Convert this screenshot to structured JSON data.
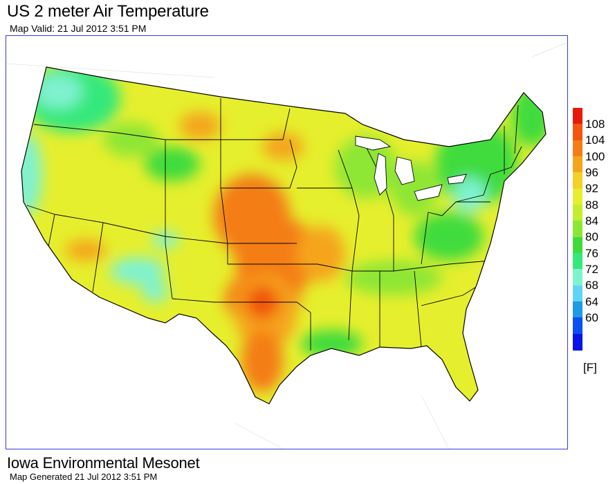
{
  "header": {
    "title": "US 2 meter Air Temperature",
    "subtitle": "Map Valid: 21 Jul 2012 3:51 PM"
  },
  "legend": {
    "unit": "[F]",
    "ticks": [
      "108",
      "104",
      "100",
      "96",
      "92",
      "88",
      "84",
      "80",
      "76",
      "72",
      "68",
      "64",
      "60"
    ],
    "colors": [
      "#e61a0a",
      "#f2550e",
      "#f47d15",
      "#f5a41d",
      "#f3d02a",
      "#e6ef2d",
      "#c3ee30",
      "#8ee634",
      "#3fdb3d",
      "#35e87b",
      "#7ff2d0",
      "#60d4f4",
      "#1f9ae8",
      "#0a4ff0",
      "#0a12e6"
    ]
  },
  "footer": {
    "title": "Iowa Environmental Mesonet",
    "subtitle": "Map Generated 21 Jul 2012 3:51 PM"
  }
}
